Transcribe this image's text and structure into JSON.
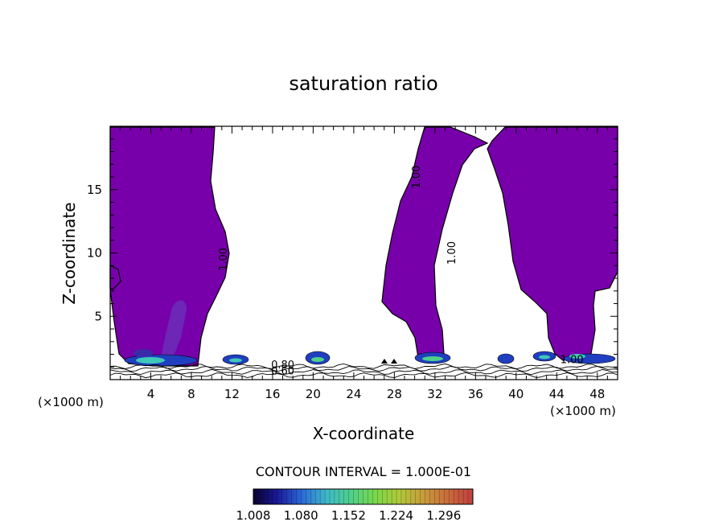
{
  "chart_data": {
    "type": "heatmap",
    "title": "saturation ratio",
    "xlabel": "X-coordinate",
    "ylabel": "Z-coordinate",
    "x_unit_left": "(×1000 m)",
    "x_unit_right": "(×1000 m)",
    "xlim": [
      0,
      50
    ],
    "ylim": [
      0,
      20
    ],
    "x_ticks": [
      4,
      8,
      12,
      16,
      20,
      24,
      28,
      32,
      36,
      40,
      44,
      48
    ],
    "x_tick_labels": [
      "4",
      "8",
      "12",
      "16",
      "20",
      "24",
      "28",
      "32",
      "36",
      "40",
      "44",
      "48"
    ],
    "y_ticks": [
      5,
      10,
      15
    ],
    "y_tick_labels": [
      "5",
      "10",
      "15"
    ],
    "contour_interval_text": "CONTOUR INTERVAL = 1.000E-01",
    "contour_labels": [
      {
        "text": "1.00",
        "x": 11.5,
        "z": 9.5
      },
      {
        "text": "1.00",
        "x": 30.5,
        "z": 16.0
      },
      {
        "text": "1.00",
        "x": 34.0,
        "z": 10.0
      },
      {
        "text": "1.00",
        "x": 45.5,
        "z": 1.3
      },
      {
        "text": "0.80",
        "x": 17.0,
        "z": 0.9
      },
      {
        "text": "0.60",
        "x": 17.0,
        "z": 0.4
      }
    ],
    "colorbar": {
      "min": 1.008,
      "max": 1.34,
      "tick_labels": [
        "1.008",
        "1.080",
        "1.152",
        "1.224",
        "1.296"
      ],
      "colors": [
        "#0a0030",
        "#1a1a9a",
        "#2b6bd8",
        "#3fb8c8",
        "#4fd08a",
        "#7ad84a",
        "#b0c83a",
        "#c89a3a",
        "#c86a3a",
        "#c04040"
      ]
    },
    "fill_color": "#7700aa",
    "legend": "bottom-center",
    "grid": false
  }
}
